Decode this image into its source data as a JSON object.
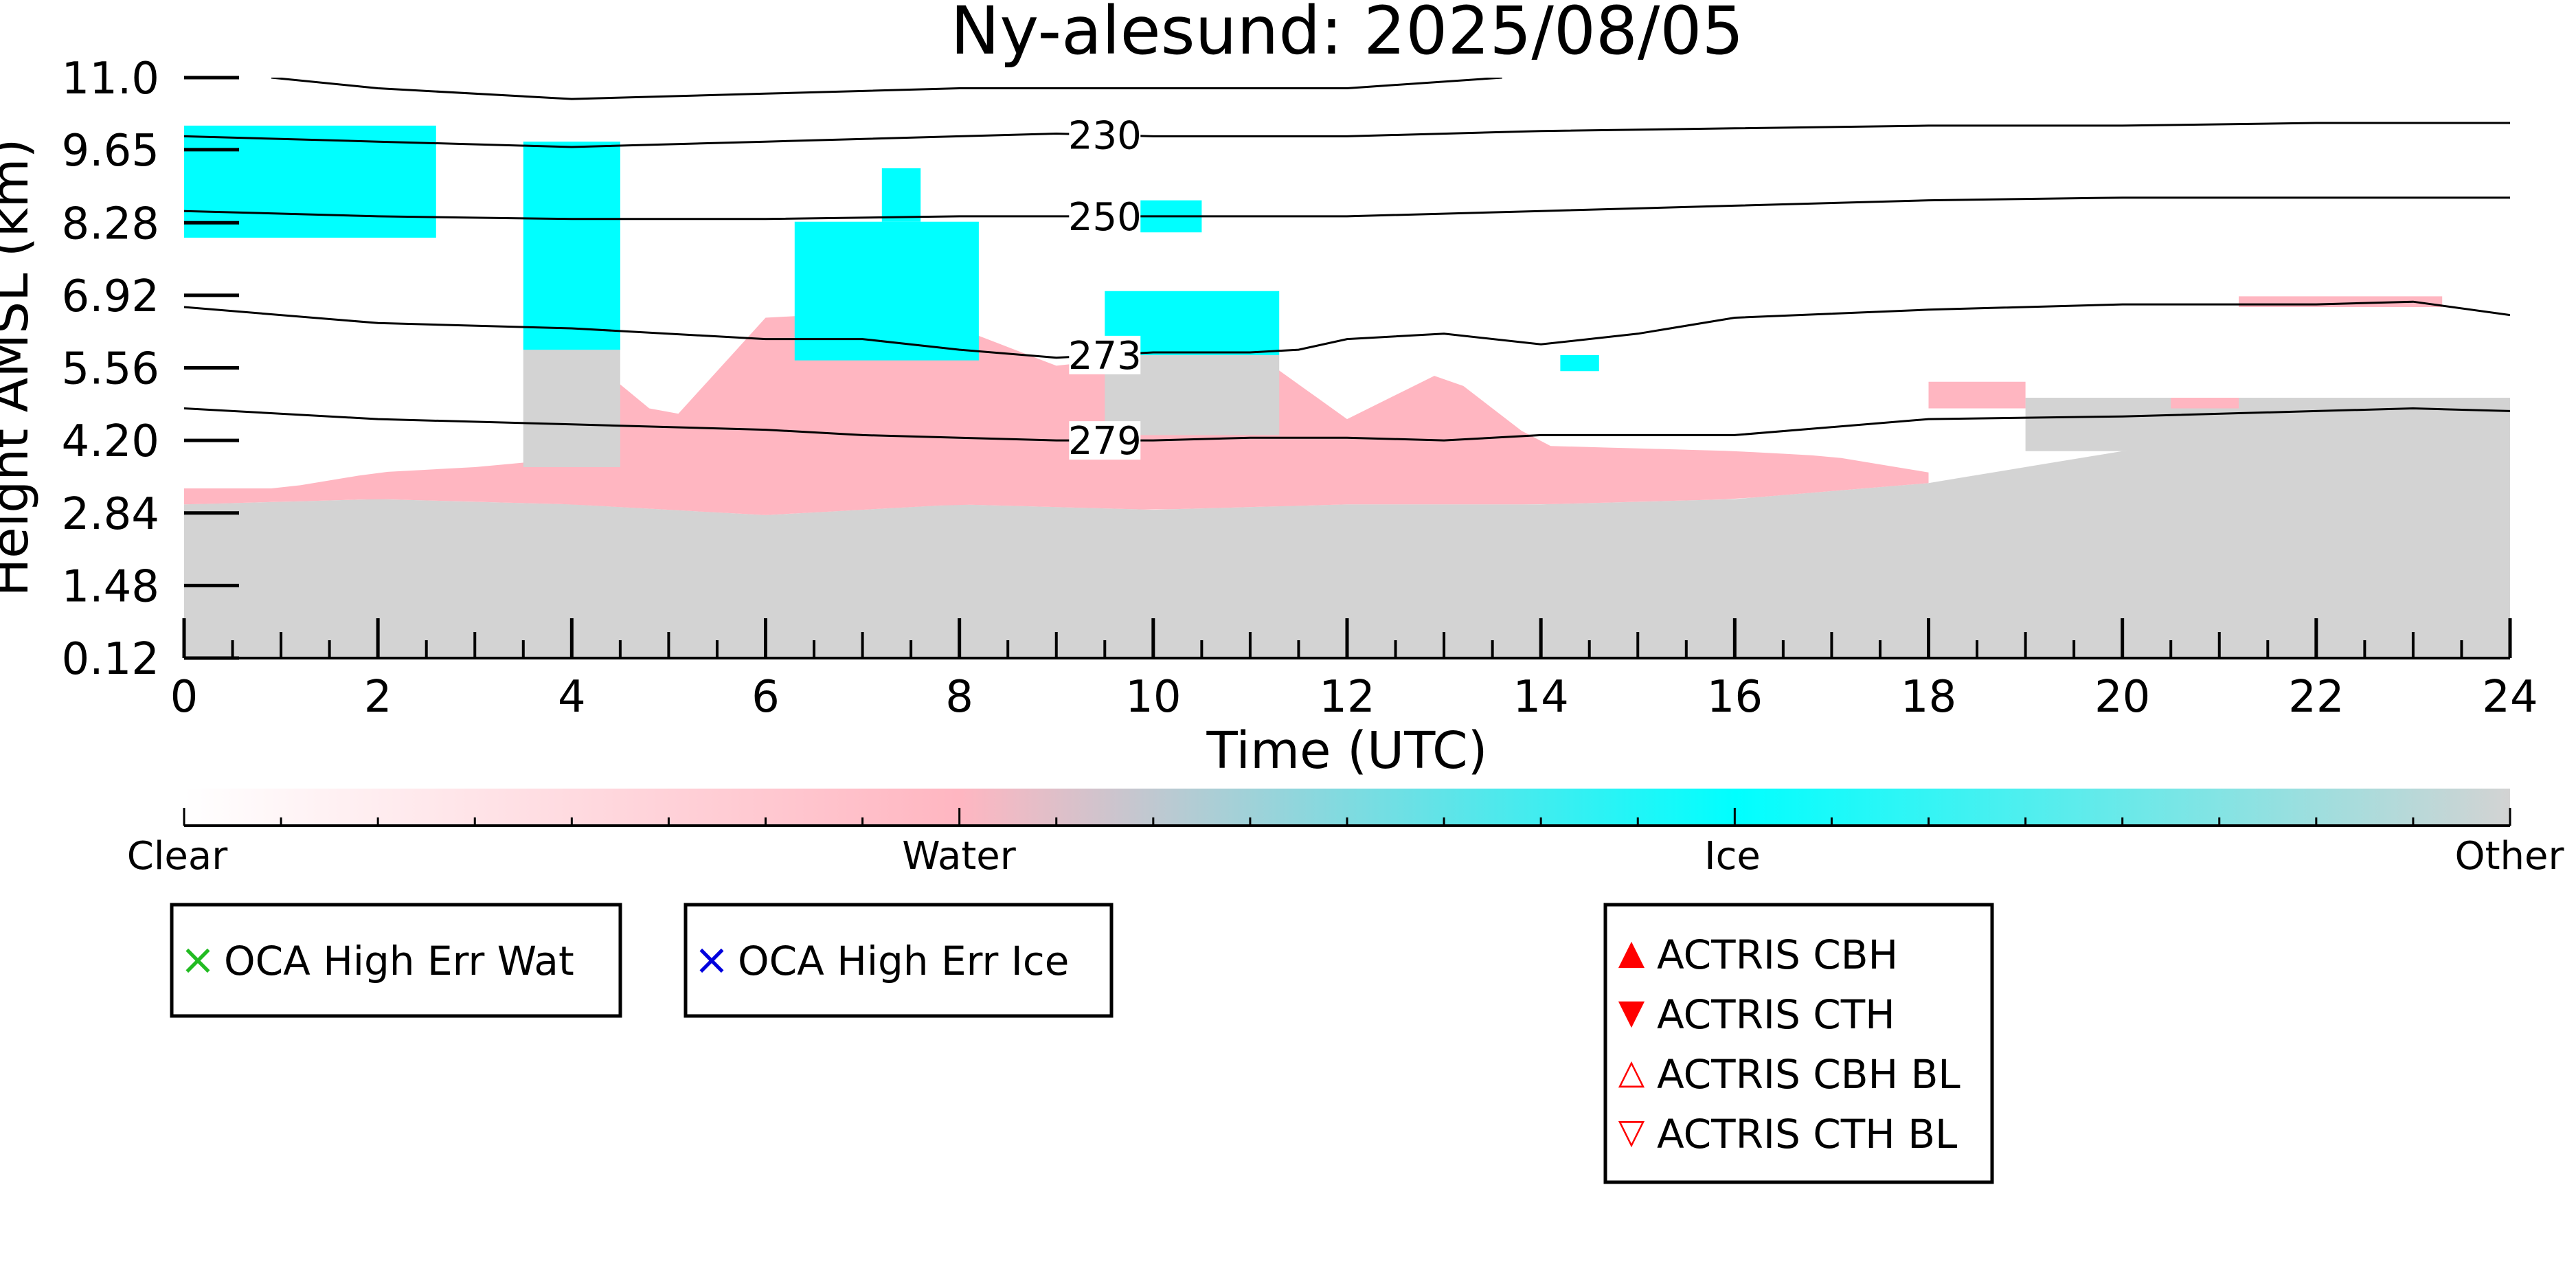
{
  "chart_data": {
    "type": "heatmap",
    "title": "Ny-alesund: 2025/08/05",
    "xlabel": "Time (UTC)",
    "ylabel": "Height AMSL (km)",
    "xlim": [
      0,
      24
    ],
    "ylim": [
      0.12,
      11.0
    ],
    "x_ticks": [
      "0",
      "2",
      "4",
      "6",
      "8",
      "10",
      "12",
      "14",
      "16",
      "18",
      "20",
      "22",
      "24"
    ],
    "y_ticks": [
      "0.12",
      "1.48",
      "2.84",
      "4.20",
      "5.56",
      "6.92",
      "8.28",
      "9.65",
      "11.0"
    ],
    "colors": {
      "clear": "#ffffff",
      "water": "#ffb6c1",
      "ice": "#00ffff",
      "other": "#d3d3d3",
      "contour": "#000000"
    },
    "colorbar": {
      "labels": [
        "Clear",
        "Water",
        "Ice",
        "Other"
      ]
    },
    "regions": [
      {
        "class": "other",
        "t0": 0,
        "t1": 24,
        "h_top": [
          [
            0,
            3.0
          ],
          [
            2,
            3.1
          ],
          [
            4,
            3.0
          ],
          [
            6,
            2.8
          ],
          [
            8,
            3.0
          ],
          [
            10,
            2.9
          ],
          [
            12,
            3.0
          ],
          [
            14,
            3.0
          ],
          [
            16,
            3.1
          ],
          [
            18,
            3.4
          ],
          [
            20,
            4.0
          ],
          [
            22,
            4.1
          ],
          [
            24,
            4.2
          ]
        ]
      },
      {
        "class": "water",
        "t0": 0,
        "t1": 18,
        "h_bottom": [
          [
            0,
            3.0
          ],
          [
            2,
            3.1
          ],
          [
            4,
            3.0
          ],
          [
            6,
            2.8
          ],
          [
            8,
            3.0
          ],
          [
            10,
            2.9
          ],
          [
            12,
            3.0
          ],
          [
            14,
            3.0
          ],
          [
            16,
            3.1
          ],
          [
            18,
            3.4
          ]
        ],
        "h_top": [
          [
            0,
            3.3
          ],
          [
            1,
            3.3
          ],
          [
            2,
            3.6
          ],
          [
            3,
            3.7
          ],
          [
            3.6,
            3.8
          ],
          [
            4,
            6.0
          ],
          [
            5,
            4.5
          ],
          [
            6,
            6.5
          ],
          [
            7,
            6.6
          ],
          [
            8,
            6.3
          ],
          [
            9,
            5.6
          ],
          [
            10,
            5.8
          ],
          [
            11,
            5.9
          ],
          [
            12,
            4.6
          ],
          [
            13,
            5.5
          ],
          [
            13.5,
            4.8
          ],
          [
            14,
            4.1
          ],
          [
            16,
            4.0
          ],
          [
            17,
            3.9
          ],
          [
            18,
            3.6
          ]
        ]
      },
      {
        "class": "other",
        "t0": 3.5,
        "t1": 4.5,
        "h_bottom": 3.7,
        "h_top": 6.1
      },
      {
        "class": "other",
        "t0": 9.5,
        "t1": 11.3,
        "h_bottom": 4.3,
        "h_top": 5.8
      },
      {
        "class": "other",
        "t0": 19,
        "t1": 24,
        "h_bottom": 4.0,
        "h_top": 5.0
      },
      {
        "class": "ice",
        "t0": 0,
        "t1": 2.6,
        "h_bottom": 8.0,
        "h_top": 10.1
      },
      {
        "class": "ice",
        "t0": 3.5,
        "t1": 4.5,
        "h_bottom": 5.9,
        "h_top": 9.8
      },
      {
        "class": "ice",
        "t0": 6.3,
        "t1": 8.2,
        "h_bottom": 5.7,
        "h_top": 8.3
      },
      {
        "class": "ice",
        "t0": 7.2,
        "t1": 7.6,
        "h_bottom": 8.3,
        "h_top": 9.3
      },
      {
        "class": "ice",
        "t0": 9.5,
        "t1": 11.3,
        "h_bottom": 5.8,
        "h_top": 7.0
      },
      {
        "class": "ice",
        "t0": 9.5,
        "t1": 10.5,
        "h_bottom": 8.1,
        "h_top": 8.7
      },
      {
        "class": "ice",
        "t0": 14.2,
        "t1": 14.6,
        "h_bottom": 5.5,
        "h_top": 5.8
      },
      {
        "class": "water",
        "t0": 18.0,
        "t1": 19.0,
        "h_bottom": 4.8,
        "h_top": 5.3
      },
      {
        "class": "water",
        "t0": 20.5,
        "t1": 21.2,
        "h_bottom": 4.8,
        "h_top": 5.0
      },
      {
        "class": "water",
        "t0": 21.2,
        "t1": 23.3,
        "h_bottom": 6.7,
        "h_top": 6.9
      }
    ],
    "contours": [
      {
        "label": "",
        "points": [
          [
            0.9,
            11.0
          ],
          [
            2,
            10.8
          ],
          [
            4,
            10.6
          ],
          [
            6,
            10.7
          ],
          [
            8,
            10.8
          ],
          [
            10,
            10.8
          ],
          [
            12,
            10.8
          ],
          [
            13.6,
            11.0
          ]
        ]
      },
      {
        "label": "230",
        "label_at": 9.5,
        "points": [
          [
            0,
            9.9
          ],
          [
            2,
            9.8
          ],
          [
            4,
            9.7
          ],
          [
            6,
            9.8
          ],
          [
            8,
            9.9
          ],
          [
            9,
            9.95
          ],
          [
            10,
            9.9
          ],
          [
            12,
            9.9
          ],
          [
            14,
            10.0
          ],
          [
            16,
            10.05
          ],
          [
            18,
            10.1
          ],
          [
            20,
            10.1
          ],
          [
            22,
            10.15
          ],
          [
            24,
            10.15
          ]
        ]
      },
      {
        "label": "250",
        "label_at": 9.5,
        "points": [
          [
            0,
            8.5
          ],
          [
            2,
            8.4
          ],
          [
            4,
            8.35
          ],
          [
            6,
            8.35
          ],
          [
            8,
            8.4
          ],
          [
            9,
            8.4
          ],
          [
            10,
            8.4
          ],
          [
            12,
            8.4
          ],
          [
            14,
            8.5
          ],
          [
            16,
            8.6
          ],
          [
            18,
            8.7
          ],
          [
            20,
            8.75
          ],
          [
            22,
            8.75
          ],
          [
            24,
            8.75
          ]
        ]
      },
      {
        "label": "273",
        "label_at": 9.5,
        "points": [
          [
            0,
            6.7
          ],
          [
            2,
            6.4
          ],
          [
            4,
            6.3
          ],
          [
            6,
            6.1
          ],
          [
            7,
            6.1
          ],
          [
            8,
            5.9
          ],
          [
            9,
            5.75
          ],
          [
            10,
            5.85
          ],
          [
            11,
            5.85
          ],
          [
            11.5,
            5.9
          ],
          [
            12,
            6.1
          ],
          [
            13,
            6.2
          ],
          [
            14,
            6.0
          ],
          [
            15,
            6.2
          ],
          [
            16,
            6.5
          ],
          [
            18,
            6.65
          ],
          [
            20,
            6.75
          ],
          [
            22,
            6.75
          ],
          [
            23,
            6.8
          ],
          [
            24,
            6.55
          ]
        ]
      },
      {
        "label": "279",
        "label_at": 9.5,
        "points": [
          [
            0,
            4.8
          ],
          [
            2,
            4.6
          ],
          [
            4,
            4.5
          ],
          [
            6,
            4.4
          ],
          [
            7,
            4.3
          ],
          [
            8,
            4.25
          ],
          [
            9,
            4.2
          ],
          [
            10,
            4.2
          ],
          [
            11,
            4.25
          ],
          [
            12,
            4.25
          ],
          [
            13,
            4.2
          ],
          [
            14,
            4.3
          ],
          [
            15,
            4.3
          ],
          [
            16,
            4.3
          ],
          [
            18,
            4.6
          ],
          [
            20,
            4.65
          ],
          [
            22,
            4.75
          ],
          [
            23,
            4.8
          ],
          [
            24,
            4.75
          ]
        ]
      }
    ],
    "legends": [
      {
        "items": [
          {
            "symbol": "×",
            "color": "#22bb22",
            "label": "OCA High Err Wat"
          }
        ]
      },
      {
        "items": [
          {
            "symbol": "×",
            "color": "#0000dd",
            "label": "OCA High Err Ice"
          }
        ]
      },
      {
        "items": [
          {
            "symbol": "▲",
            "color": "#ff0000",
            "label": "ACTRIS CBH"
          },
          {
            "symbol": "▼",
            "color": "#ff0000",
            "label": "ACTRIS CTH"
          },
          {
            "symbol": "△",
            "color": "#ff0000",
            "label": "ACTRIS CBH BL"
          },
          {
            "symbol": "▽",
            "color": "#ff0000",
            "label": "ACTRIS CTH BL"
          }
        ]
      }
    ]
  }
}
